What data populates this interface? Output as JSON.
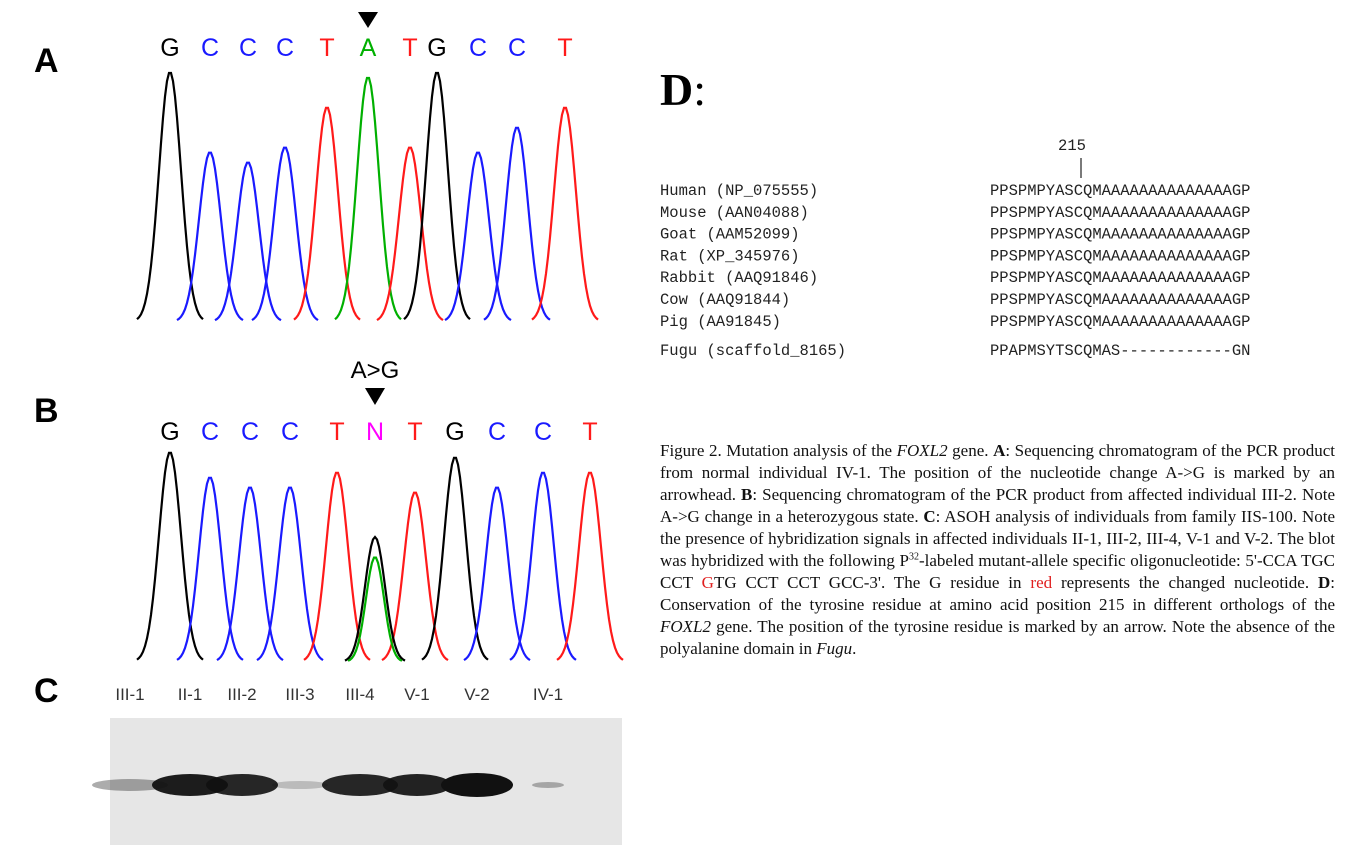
{
  "panels": {
    "A": {
      "label": "A",
      "bases": [
        {
          "base": "G",
          "color": "#000000"
        },
        {
          "base": "C",
          "color": "#1a1aff"
        },
        {
          "base": "C",
          "color": "#1a1aff"
        },
        {
          "base": "C",
          "color": "#1a1aff"
        },
        {
          "base": "T",
          "color": "#ff1a1a"
        },
        {
          "base": "A",
          "color": "#00b000"
        },
        {
          "base": "T",
          "color": "#ff1a1a"
        },
        {
          "base": "G",
          "color": "#000000"
        },
        {
          "base": "C",
          "color": "#1a1aff"
        },
        {
          "base": "C",
          "color": "#1a1aff"
        },
        {
          "base": "T",
          "color": "#ff1a1a"
        }
      ]
    },
    "B": {
      "label": "B",
      "annotation": "A>G",
      "bases": [
        {
          "base": "G",
          "color": "#000000"
        },
        {
          "base": "C",
          "color": "#1a1aff"
        },
        {
          "base": "C",
          "color": "#1a1aff"
        },
        {
          "base": "C",
          "color": "#1a1aff"
        },
        {
          "base": "T",
          "color": "#ff1a1a"
        },
        {
          "base": "N",
          "color": "#ff00ff"
        },
        {
          "base": "T",
          "color": "#ff1a1a"
        },
        {
          "base": "G",
          "color": "#000000"
        },
        {
          "base": "C",
          "color": "#1a1aff"
        },
        {
          "base": "C",
          "color": "#1a1aff"
        },
        {
          "base": "T",
          "color": "#ff1a1a"
        }
      ]
    },
    "C": {
      "label": "C",
      "lanes": [
        "III-1",
        "II-1",
        "III-2",
        "III-3",
        "III-4",
        "V-1",
        "V-2",
        "IV-1"
      ]
    },
    "D": {
      "label": "D",
      "separator": ":",
      "position": "215",
      "rows": [
        {
          "name": "Human (NP_075555)",
          "sequence": "PPSPMPYASCQMAAAAAAAAAAAAAAGP"
        },
        {
          "name": "Mouse (AAN04088)",
          "sequence": "PPSPMPYASCQMAAAAAAAAAAAAAAGP"
        },
        {
          "name": "Goat (AAM52099)",
          "sequence": "PPSPMPYASCQMAAAAAAAAAAAAAAGP"
        },
        {
          "name": "Rat (XP_345976)",
          "sequence": "PPSPMPYASCQMAAAAAAAAAAAAAAGP"
        },
        {
          "name": "Rabbit (AAQ91846)",
          "sequence": "PPSPMPYASCQMAAAAAAAAAAAAAAGP"
        },
        {
          "name": "Cow (AAQ91844)",
          "sequence": "PPSPMPYASCQMAAAAAAAAAAAAAAGP"
        },
        {
          "name": "Pig (AA91845)",
          "sequence": "PPSPMPYASCQMAAAAAAAAAAAAAAGP"
        },
        {
          "name": "Fugu (scaffold_8165)",
          "sequence": "PPAPMSYTSCQMAS------------GN"
        }
      ]
    }
  },
  "caption": [
    "Figure 2. Mutation analysis of the ",
    "FOXL2",
    " gene. ",
    "A",
    ": Sequencing chromatogram of the PCR product from normal individual IV-1. The position of the nucleotide change A->G is marked by an arrowhead. ",
    "B",
    ": Sequencing chromatogram of the PCR product from affected individual III-2. Note A->G change in a heterozygous state. ",
    "C",
    ": ASOH analysis of individuals from family IIS-100. Note the presence of hybridization signals in affected individuals II-1, III-2, III-4, V-1 and V-2. The blot was hybridized with the following P",
    "32",
    "-labeled mutant-allele specific oligonucleotide: 5'-CCA TGC CCT ",
    "G",
    "TG CCT CCT GCC-3'. The G residue in ",
    "red",
    " represents the changed nucleotide. ",
    "D",
    ": Conservation of the tyrosine residue at amino acid position 215 in different orthologs of the ",
    "FOXL2",
    " gene. The position of the tyrosine residue is marked by an arrow. Note the absence of the polyalanine domain in ",
    "Fugu",
    "."
  ]
}
